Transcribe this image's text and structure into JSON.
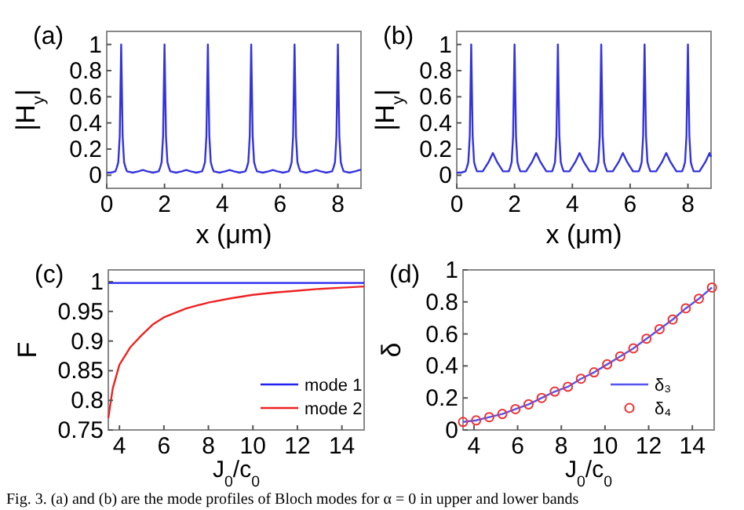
{
  "chart_data": [
    {
      "type": "line",
      "title": "(a)",
      "xlabel": "x (μm)",
      "ylabel": "|H$_{y}$|",
      "xlim": [
        0,
        8.8
      ],
      "xticks": [
        0,
        2,
        4,
        6,
        8
      ],
      "ylim": [
        -0.1,
        1.1
      ],
      "yticks": [
        0,
        0.2,
        0.4,
        0.6,
        0.8,
        1
      ],
      "grid": false,
      "legend": false,
      "series": [
        {
          "color": "#3333dd",
          "x": [
            0,
            0.15,
            0.3,
            0.35,
            0.4,
            0.45,
            0.5,
            0.55,
            0.6,
            0.65,
            0.7,
            0.9,
            1.1,
            1.25,
            1.4,
            1.6,
            1.8,
            1.85,
            1.9,
            1.95,
            2,
            2.05,
            2.1,
            2.15,
            2.2,
            2.4,
            2.6,
            2.75,
            2.9,
            3.1,
            3.3,
            3.35,
            3.4,
            3.45,
            3.5,
            3.55,
            3.6,
            3.65,
            3.7,
            3.9,
            4.1,
            4.25,
            4.4,
            4.6,
            4.8,
            4.85,
            4.9,
            4.95,
            5,
            5.05,
            5.1,
            5.15,
            5.2,
            5.4,
            5.6,
            5.75,
            5.9,
            6.1,
            6.3,
            6.35,
            6.4,
            6.45,
            6.5,
            6.55,
            6.6,
            6.65,
            6.7,
            6.9,
            7.1,
            7.25,
            7.4,
            7.6,
            7.8,
            7.85,
            7.9,
            7.95,
            8,
            8.05,
            8.1,
            8.15,
            8.2,
            8.4,
            8.6,
            8.75,
            8.8
          ],
          "values": [
            0.02,
            0.02,
            0.03,
            0.06,
            0.1,
            0.3,
            1,
            0.3,
            0.1,
            0.06,
            0.03,
            0.02,
            0.03,
            0.04,
            0.03,
            0.02,
            0.03,
            0.06,
            0.1,
            0.3,
            1,
            0.3,
            0.1,
            0.06,
            0.03,
            0.02,
            0.03,
            0.04,
            0.03,
            0.02,
            0.03,
            0.06,
            0.1,
            0.3,
            1,
            0.3,
            0.1,
            0.06,
            0.03,
            0.02,
            0.03,
            0.04,
            0.03,
            0.02,
            0.03,
            0.06,
            0.1,
            0.3,
            1,
            0.3,
            0.1,
            0.06,
            0.03,
            0.02,
            0.03,
            0.04,
            0.03,
            0.02,
            0.03,
            0.06,
            0.1,
            0.3,
            1,
            0.3,
            0.1,
            0.06,
            0.03,
            0.02,
            0.03,
            0.04,
            0.03,
            0.02,
            0.03,
            0.06,
            0.1,
            0.3,
            1,
            0.3,
            0.1,
            0.06,
            0.03,
            0.02,
            0.03,
            0.04,
            0.04
          ]
        }
      ]
    },
    {
      "type": "line",
      "title": "(b)",
      "xlabel": "x (μm)",
      "ylabel": "|H$_{y}$|",
      "xlim": [
        0,
        8.8
      ],
      "xticks": [
        0,
        2,
        4,
        6,
        8
      ],
      "ylim": [
        -0.1,
        1.1
      ],
      "yticks": [
        0,
        0.2,
        0.4,
        0.6,
        0.8,
        1
      ],
      "grid": false,
      "legend": false,
      "series": [
        {
          "color": "#3333dd",
          "x": [
            0,
            0.15,
            0.3,
            0.35,
            0.4,
            0.45,
            0.5,
            0.55,
            0.6,
            0.65,
            0.7,
            0.9,
            1.1,
            1.25,
            1.4,
            1.6,
            1.8,
            1.85,
            1.9,
            1.95,
            2,
            2.05,
            2.1,
            2.15,
            2.2,
            2.4,
            2.6,
            2.75,
            2.9,
            3.1,
            3.3,
            3.35,
            3.4,
            3.45,
            3.5,
            3.55,
            3.6,
            3.65,
            3.7,
            3.9,
            4.1,
            4.25,
            4.4,
            4.6,
            4.8,
            4.85,
            4.9,
            4.95,
            5,
            5.05,
            5.1,
            5.15,
            5.2,
            5.4,
            5.6,
            5.75,
            5.9,
            6.1,
            6.3,
            6.35,
            6.4,
            6.45,
            6.5,
            6.55,
            6.6,
            6.65,
            6.7,
            6.9,
            7.1,
            7.25,
            7.4,
            7.6,
            7.8,
            7.85,
            7.9,
            7.95,
            8,
            8.05,
            8.1,
            8.15,
            8.2,
            8.4,
            8.6,
            8.75,
            8.8
          ],
          "values": [
            0.02,
            0.02,
            0.03,
            0.06,
            0.1,
            0.3,
            1,
            0.3,
            0.1,
            0.06,
            0.03,
            0.03,
            0.1,
            0.17,
            0.1,
            0.03,
            0.03,
            0.06,
            0.1,
            0.3,
            1,
            0.3,
            0.1,
            0.06,
            0.03,
            0.03,
            0.1,
            0.17,
            0.1,
            0.03,
            0.03,
            0.06,
            0.1,
            0.3,
            1,
            0.3,
            0.1,
            0.06,
            0.03,
            0.03,
            0.1,
            0.17,
            0.1,
            0.03,
            0.03,
            0.06,
            0.1,
            0.3,
            1,
            0.3,
            0.1,
            0.06,
            0.03,
            0.03,
            0.1,
            0.17,
            0.1,
            0.03,
            0.03,
            0.06,
            0.1,
            0.3,
            1,
            0.3,
            0.1,
            0.06,
            0.03,
            0.03,
            0.1,
            0.17,
            0.1,
            0.03,
            0.03,
            0.06,
            0.1,
            0.3,
            1,
            0.3,
            0.1,
            0.06,
            0.03,
            0.03,
            0.1,
            0.17,
            0.14
          ]
        }
      ]
    },
    {
      "type": "line",
      "title": "(c)",
      "xlabel": "J$_{0}$/c$_{0}$",
      "ylabel": "F",
      "xlim": [
        3.5,
        15
      ],
      "xticks": [
        4,
        6,
        8,
        10,
        12,
        14
      ],
      "ylim": [
        0.75,
        1.02
      ],
      "yticks": [
        0.75,
        0.8,
        0.85,
        0.9,
        0.95,
        1
      ],
      "grid": false,
      "legend": "bottom right",
      "series": [
        {
          "name": "mode 1",
          "color": "#2222ee",
          "x": [
            3.5,
            15
          ],
          "values": [
            0.998,
            0.998
          ]
        },
        {
          "name": "mode 2",
          "color": "#ee2222",
          "x": [
            3.5,
            3.7,
            4,
            4.5,
            5,
            5.5,
            6,
            7,
            8,
            9,
            10,
            11,
            12,
            13,
            14,
            15
          ],
          "values": [
            0.77,
            0.82,
            0.86,
            0.89,
            0.91,
            0.928,
            0.94,
            0.955,
            0.965,
            0.972,
            0.978,
            0.982,
            0.985,
            0.988,
            0.99,
            0.992
          ]
        }
      ]
    },
    {
      "type": "line",
      "title": "(d)",
      "xlabel": "J$_{0}$/c$_{0}$",
      "ylabel": "δ",
      "xlim": [
        3.5,
        15
      ],
      "xticks": [
        4,
        6,
        8,
        10,
        12,
        14
      ],
      "ylim": [
        0,
        1
      ],
      "yticks": [
        0,
        0.2,
        0.4,
        0.6,
        0.8,
        1
      ],
      "grid": false,
      "legend": "bottom right",
      "annotations": [
        "Fig. 3. (a) and (b) are the mode profiles of Bloch modes for α = 0 in upper and lower bands"
      ],
      "series": [
        {
          "name": "δ₃",
          "color": "#5555ee",
          "marker": "none",
          "x": [
            3.5,
            4.1,
            4.7,
            5.3,
            5.9,
            6.5,
            7.1,
            7.7,
            8.3,
            8.9,
            9.5,
            10.1,
            10.7,
            11.3,
            11.9,
            12.5,
            13.1,
            13.7,
            14.3,
            14.9
          ],
          "values": [
            0.05,
            0.06,
            0.08,
            0.1,
            0.13,
            0.16,
            0.2,
            0.24,
            0.27,
            0.32,
            0.36,
            0.41,
            0.46,
            0.51,
            0.57,
            0.63,
            0.69,
            0.76,
            0.82,
            0.89
          ]
        },
        {
          "name": "δ₄",
          "type": "scatter",
          "color": "#ee3333",
          "marker": "circle",
          "x": [
            3.5,
            4.1,
            4.7,
            5.3,
            5.9,
            6.5,
            7.1,
            7.7,
            8.3,
            8.9,
            9.5,
            10.1,
            10.7,
            11.3,
            11.9,
            12.5,
            13.1,
            13.7,
            14.3,
            14.9
          ],
          "values": [
            0.05,
            0.06,
            0.08,
            0.1,
            0.13,
            0.16,
            0.2,
            0.24,
            0.27,
            0.32,
            0.36,
            0.41,
            0.46,
            0.51,
            0.57,
            0.63,
            0.69,
            0.76,
            0.82,
            0.89
          ]
        }
      ]
    }
  ]
}
